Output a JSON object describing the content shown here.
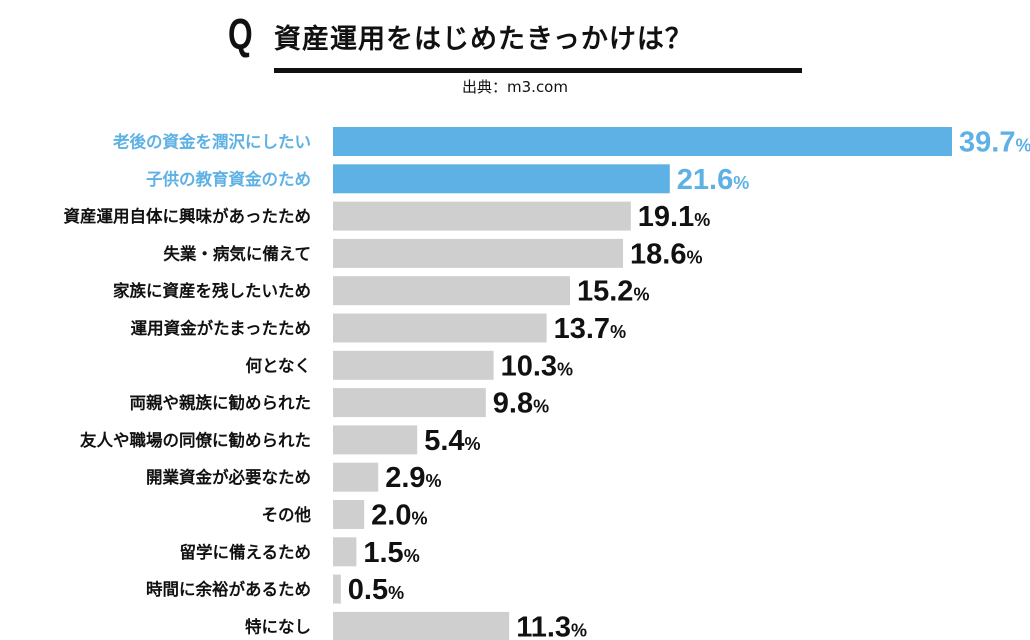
{
  "header": {
    "q_mark": "Q",
    "title": "資産運用をはじめたきっかけは？",
    "source": "出典：m3.com"
  },
  "colors": {
    "highlight": "#5eb1e4",
    "bar_default": "#cfcfcf",
    "label_default": "#111111"
  },
  "chart_data": {
    "type": "bar",
    "orientation": "horizontal",
    "title": "資産運用をはじめたきっかけは？",
    "unit": "%",
    "xlim": [
      0,
      39.7
    ],
    "categories": [
      "老後の資金を潤沢にしたい",
      "子供の教育資金のため",
      "資産運用自体に興味があったため",
      "失業・病気に備えて",
      "家族に資産を残したいため",
      "運用資金がたまったため",
      "何となく",
      "両親や親族に勧められた",
      "友人や職場の同僚に勧められた",
      "開業資金が必要なため",
      "その他",
      "留学に備えるため",
      "時間に余裕があるため",
      "特になし"
    ],
    "values": [
      39.7,
      21.6,
      19.1,
      18.6,
      15.2,
      13.7,
      10.3,
      9.8,
      5.4,
      2.9,
      2.0,
      1.5,
      0.5,
      11.3
    ],
    "highlighted": [
      true,
      true,
      false,
      false,
      false,
      false,
      false,
      false,
      false,
      false,
      false,
      false,
      false,
      false
    ]
  }
}
